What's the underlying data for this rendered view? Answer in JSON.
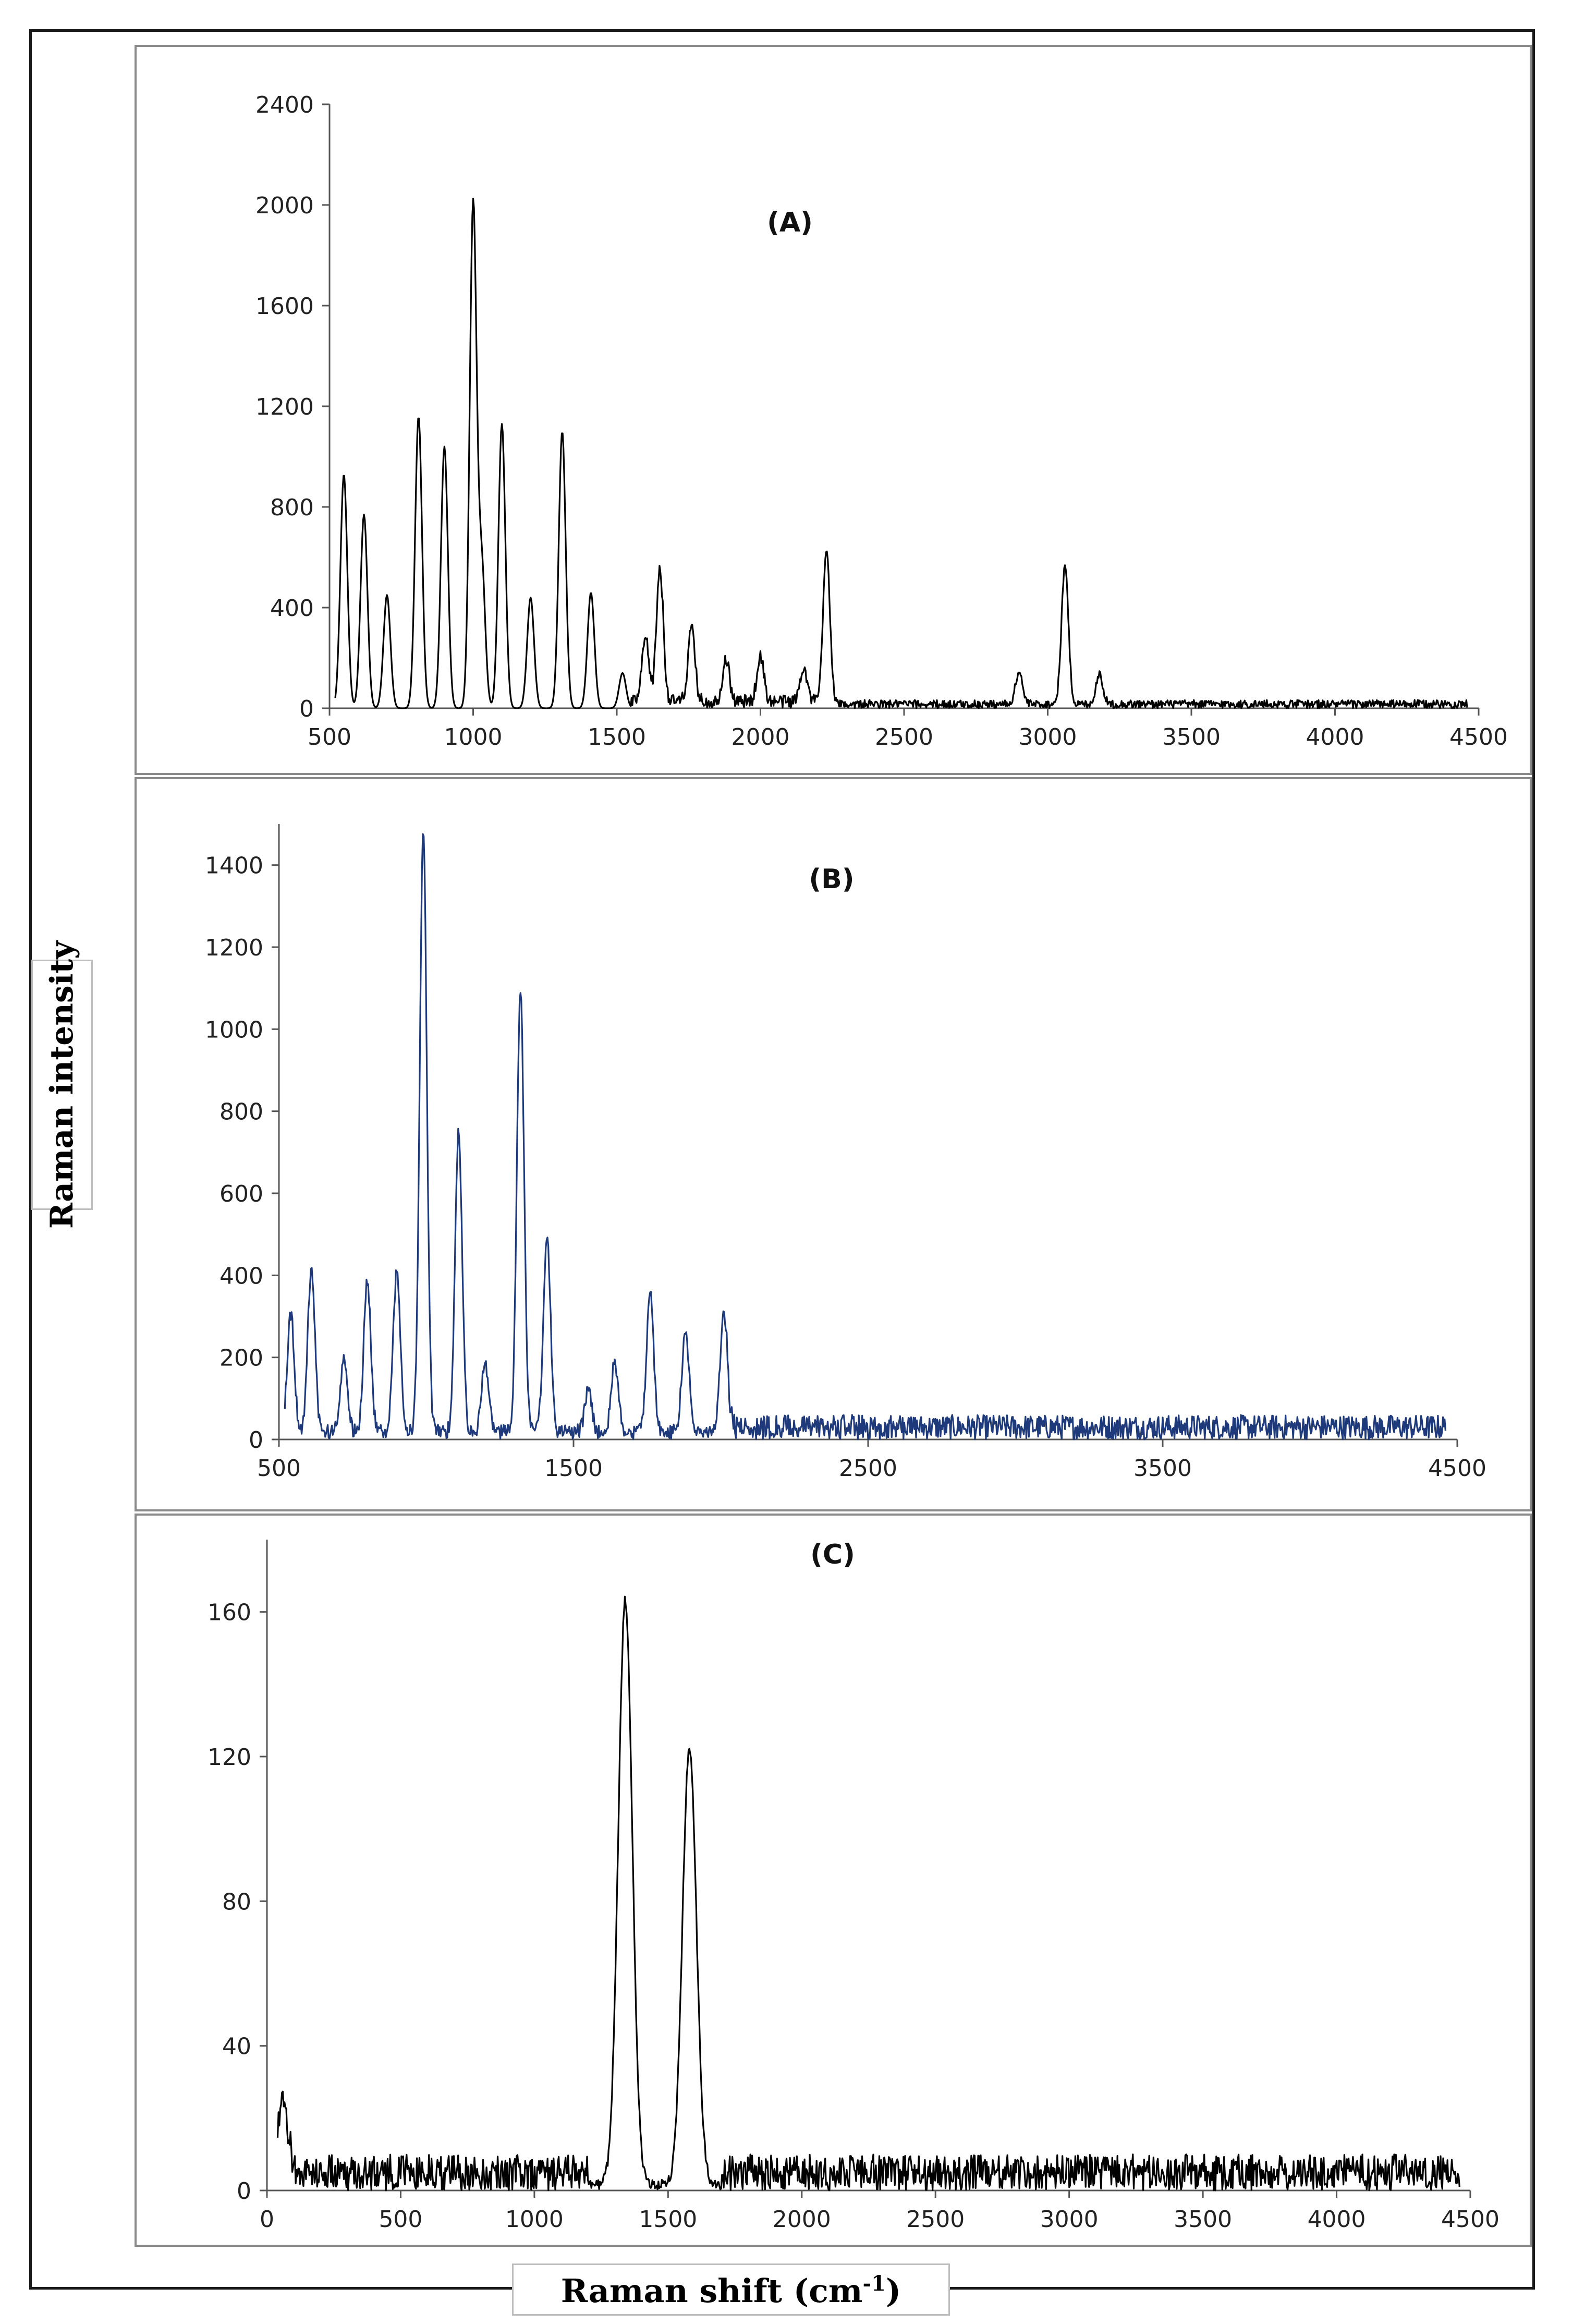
{
  "figure": {
    "ylabel": "Raman intensity",
    "xlabel_main": "Raman shift (cm",
    "xlabel_sup": "-1",
    "xlabel_close": ")"
  },
  "chart_data": [
    {
      "type": "line",
      "title": "(A)",
      "color": "#000000",
      "xlim": [
        500,
        4500
      ],
      "ylim": [
        0,
        2400
      ],
      "xticks": [
        500,
        1000,
        1500,
        2000,
        2500,
        3000,
        3500,
        4000,
        4500
      ],
      "yticks": [
        0,
        400,
        800,
        1200,
        1600,
        2000,
        2400
      ],
      "xlabel": "Raman shift (cm-1)",
      "ylabel": "Raman intensity",
      "peaks": [
        {
          "x": 550,
          "y": 930
        },
        {
          "x": 620,
          "y": 770
        },
        {
          "x": 700,
          "y": 450
        },
        {
          "x": 810,
          "y": 1160
        },
        {
          "x": 900,
          "y": 1040
        },
        {
          "x": 1000,
          "y": 2000
        },
        {
          "x": 1030,
          "y": 560
        },
        {
          "x": 1100,
          "y": 1130
        },
        {
          "x": 1200,
          "y": 440
        },
        {
          "x": 1310,
          "y": 1100
        },
        {
          "x": 1410,
          "y": 460
        },
        {
          "x": 1520,
          "y": 140
        },
        {
          "x": 1600,
          "y": 250
        },
        {
          "x": 1650,
          "y": 530
        },
        {
          "x": 1760,
          "y": 290
        },
        {
          "x": 1880,
          "y": 170
        },
        {
          "x": 2000,
          "y": 180
        },
        {
          "x": 2150,
          "y": 140
        },
        {
          "x": 2230,
          "y": 610
        },
        {
          "x": 2900,
          "y": 130
        },
        {
          "x": 3060,
          "y": 550
        },
        {
          "x": 3180,
          "y": 120
        }
      ],
      "noise_level": 60
    },
    {
      "type": "line",
      "title": "(B)",
      "color": "#1f3a7a",
      "xlim": [
        500,
        4500
      ],
      "ylim": [
        0,
        1500
      ],
      "xticks": [
        500,
        1500,
        2500,
        3500,
        4500
      ],
      "yticks": [
        0,
        200,
        400,
        600,
        800,
        1000,
        1200,
        1400
      ],
      "xlabel": "Raman shift (cm-1)",
      "ylabel": "Raman intensity",
      "peaks": [
        {
          "x": 540,
          "y": 290
        },
        {
          "x": 610,
          "y": 400
        },
        {
          "x": 720,
          "y": 180
        },
        {
          "x": 800,
          "y": 370
        },
        {
          "x": 900,
          "y": 390
        },
        {
          "x": 990,
          "y": 1460
        },
        {
          "x": 1110,
          "y": 730
        },
        {
          "x": 1200,
          "y": 170
        },
        {
          "x": 1320,
          "y": 1080
        },
        {
          "x": 1410,
          "y": 480
        },
        {
          "x": 1550,
          "y": 100
        },
        {
          "x": 1640,
          "y": 170
        },
        {
          "x": 1760,
          "y": 340
        },
        {
          "x": 1880,
          "y": 250
        },
        {
          "x": 2010,
          "y": 300
        }
      ],
      "noise_level": 60
    },
    {
      "type": "line",
      "title": "(C)",
      "color": "#000000",
      "xlim": [
        0,
        4500
      ],
      "ylim": [
        0,
        180
      ],
      "xticks": [
        0,
        500,
        1000,
        1500,
        2000,
        2500,
        3000,
        3500,
        4000,
        4500
      ],
      "yticks": [
        0,
        40,
        80,
        120,
        160
      ],
      "xlabel": "Raman shift (cm-1)",
      "ylabel": "Raman intensity",
      "peaks": [
        {
          "x": 60,
          "y": 18
        },
        {
          "x": 1340,
          "y": 162
        },
        {
          "x": 1580,
          "y": 121
        }
      ],
      "noise_level": 10
    }
  ]
}
